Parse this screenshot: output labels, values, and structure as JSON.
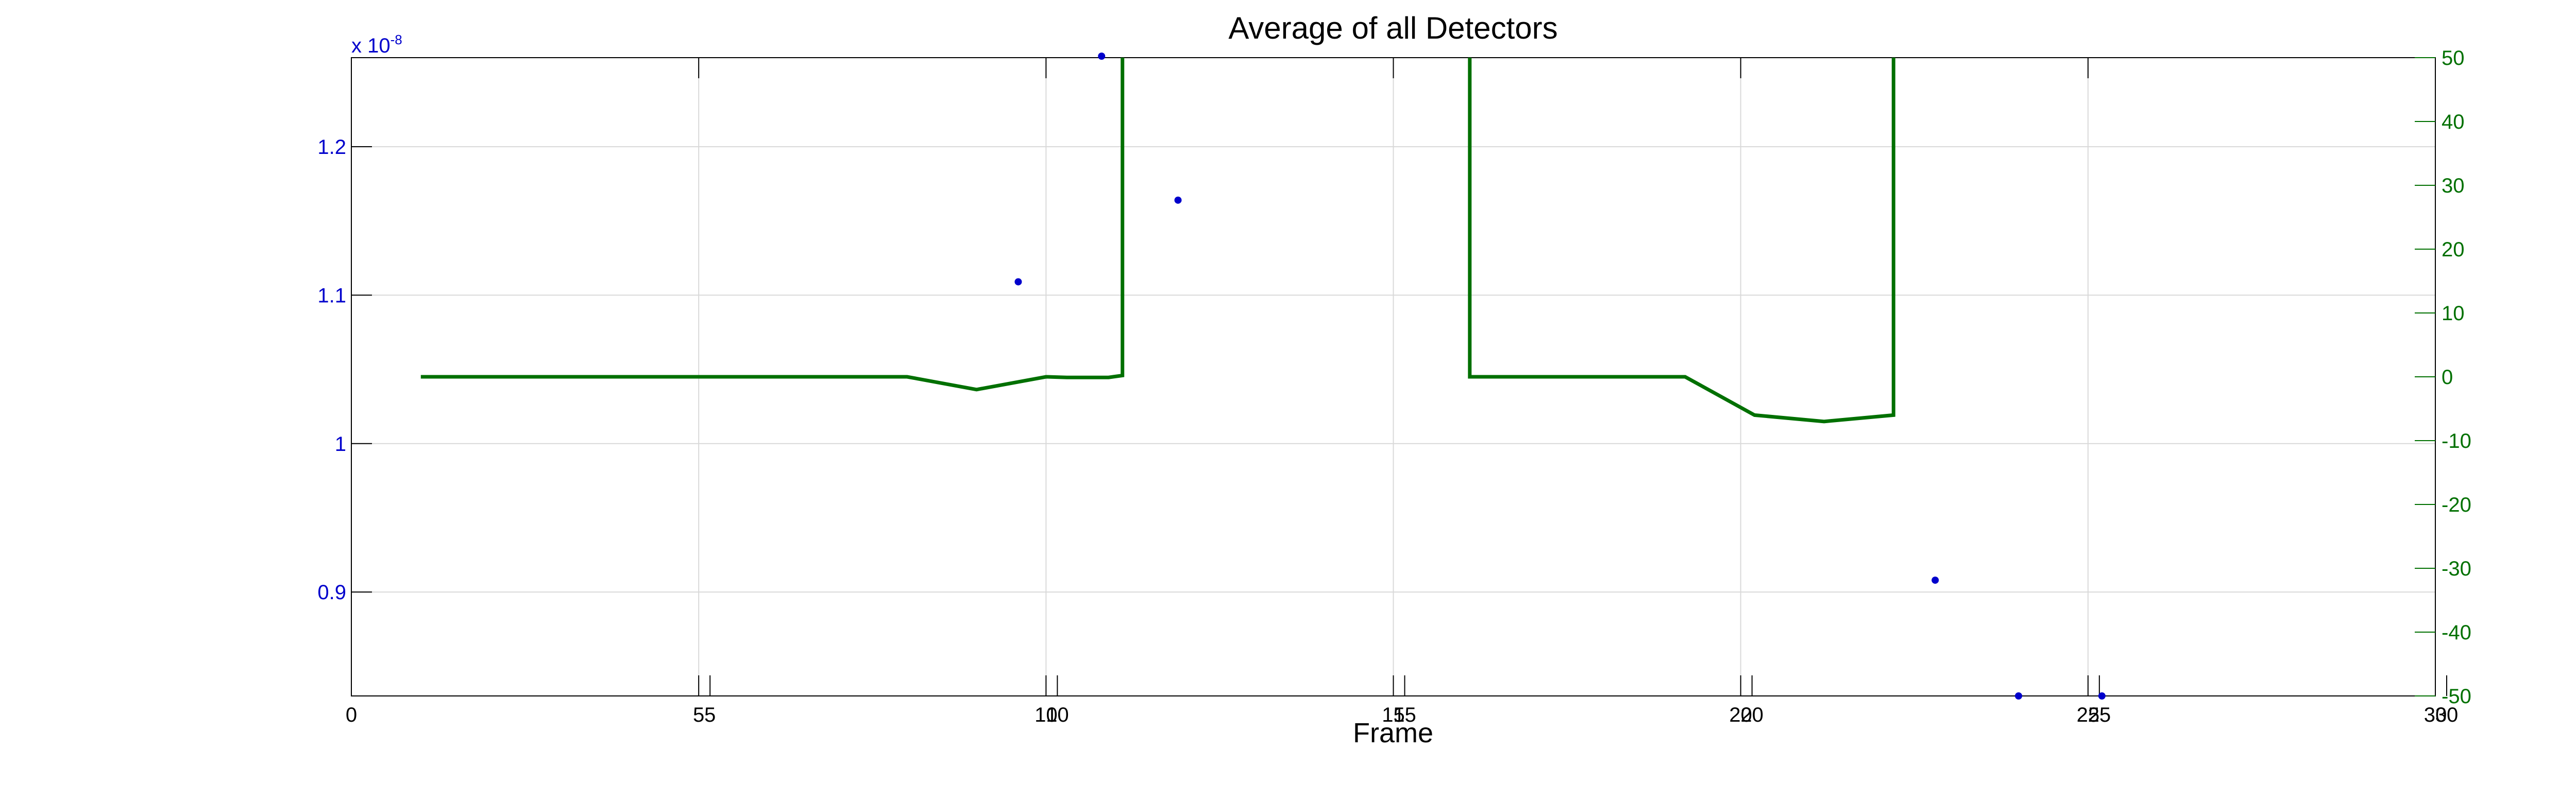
{
  "chart_data": {
    "type": "line",
    "title": "Average of all Detectors",
    "xlabel": "Frame",
    "grid": true,
    "colors": {
      "left": "#0000cc",
      "right": "#007000",
      "grid": "#d9d9d9"
    },
    "left_axis": {
      "range": [
        0.83,
        1.26
      ],
      "ticks": [
        0.9,
        1,
        1.1,
        1.2
      ],
      "tick_labels": [
        "0.9",
        "1",
        "1.1",
        "1.2"
      ],
      "exponent_base": "x 10",
      "exponent_power": "-8"
    },
    "right_axis": {
      "range": [
        -50,
        50
      ],
      "ticks": [
        -50,
        -40,
        -30,
        -20,
        -10,
        0,
        10,
        20,
        30,
        40,
        50
      ],
      "tick_labels": [
        "-50",
        "-40",
        "-30",
        "-20",
        "-10",
        "0",
        "10",
        "20",
        "30",
        "40",
        "50"
      ]
    },
    "x_axis_left": {
      "range": [
        0,
        30
      ],
      "ticks": [
        0,
        5,
        10,
        15,
        20,
        25,
        30
      ],
      "tick_labels": [
        "0",
        "5",
        "10",
        "15",
        "20",
        "25",
        "30"
      ]
    },
    "x_axis_right": {
      "range": [
        0,
        30
      ],
      "ticks": [
        0,
        5,
        10,
        15,
        20,
        25,
        30
      ],
      "tick_labels": [
        "",
        "5",
        "10",
        "15",
        "20",
        "25",
        "30"
      ]
    },
    "series": [
      {
        "marker": "dot",
        "axis": "left",
        "x": [
          9.6,
          10.8,
          11.9,
          22.8,
          24.0,
          25.2
        ],
        "y": [
          1.109,
          1.261,
          1.164,
          0.908,
          0.83,
          0.83
        ]
      },
      {
        "marker": "line",
        "axis": "right",
        "x": [
          1,
          8,
          9,
          10,
          10.3,
          10.9,
          11.1,
          11.1,
          16.1,
          16.1,
          19.2,
          20.2,
          21.2,
          22.2,
          22.2
        ],
        "y": [
          0,
          0,
          -2,
          0,
          -0.1,
          -0.1,
          0.2,
          60,
          60,
          0,
          0,
          -6,
          -7,
          -6,
          60
        ]
      }
    ]
  }
}
